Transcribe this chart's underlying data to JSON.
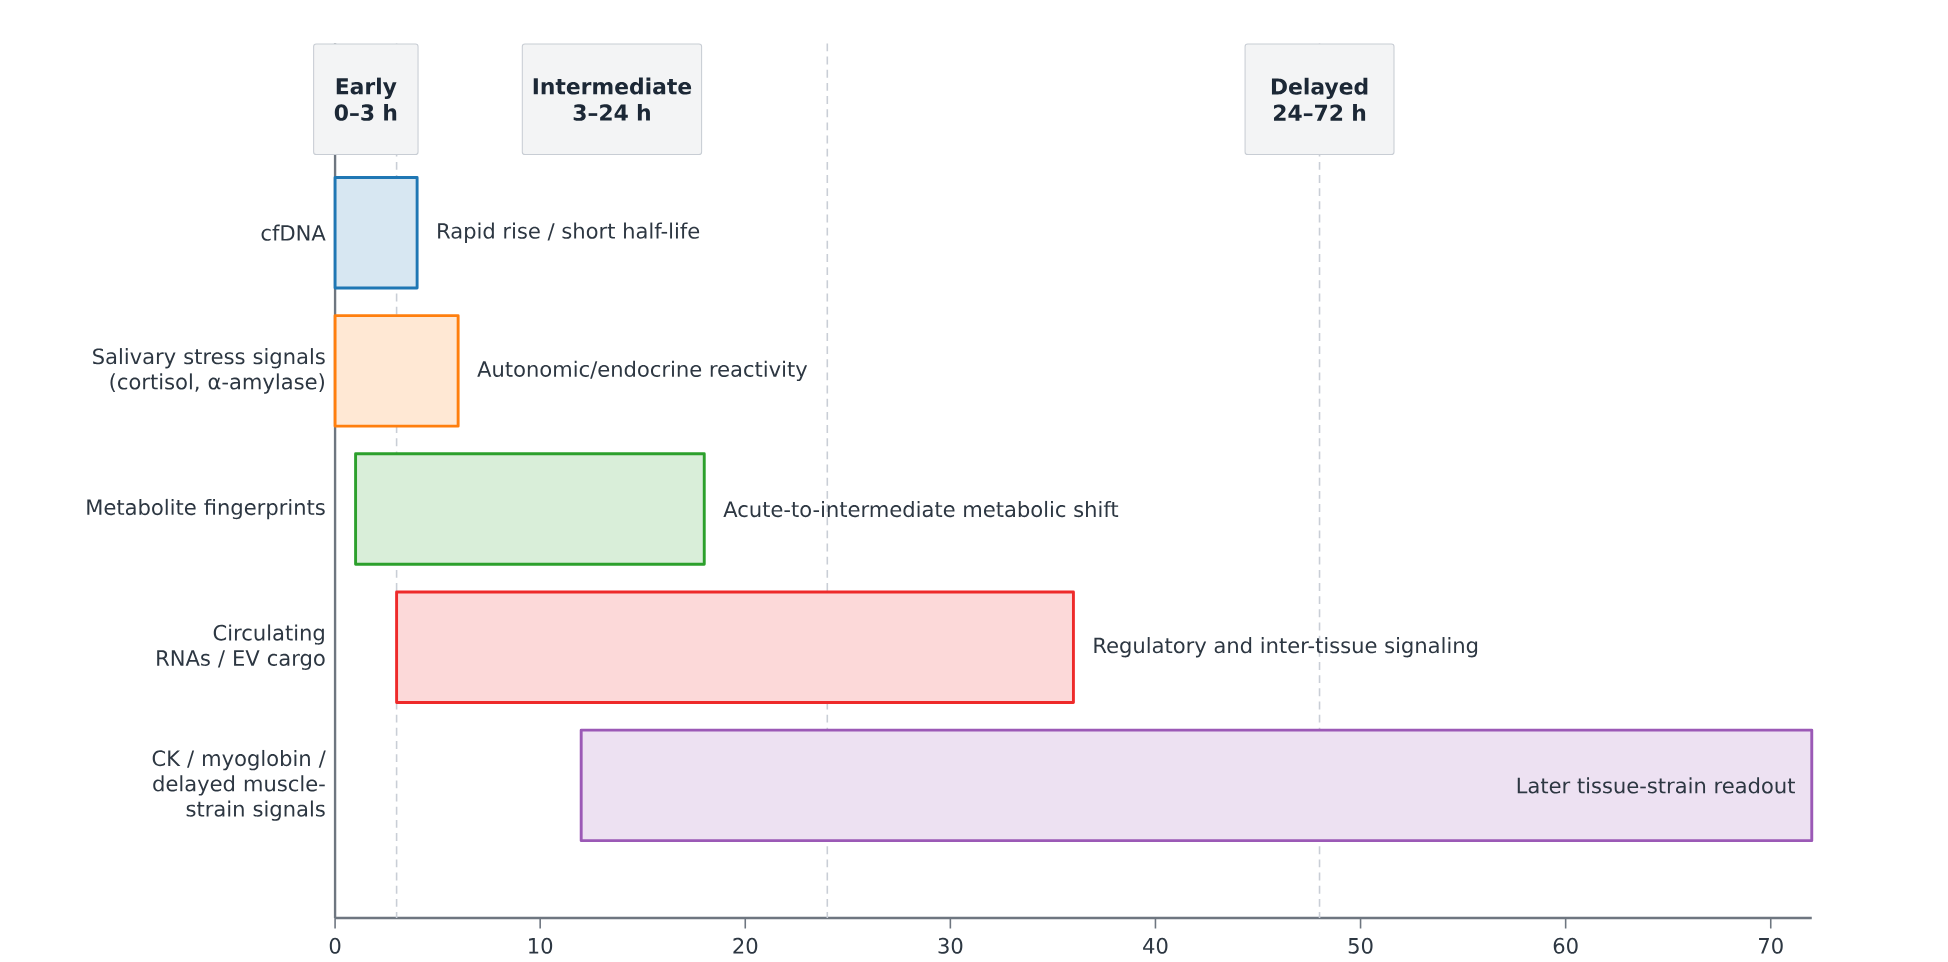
{
  "chart_data": {
    "type": "bar",
    "orientation": "horizontal",
    "categories": [
      "cfDNA",
      "Salivary stress signals (cortisol, α-amylase)",
      "Metabolite fingerprints",
      "Circulating RNAs / EV cargo",
      "CK / myoglobin / delayed muscle-strain signals"
    ],
    "base": [
      0,
      0,
      1,
      3,
      12
    ],
    "values": [
      4,
      6,
      17,
      33,
      60
    ],
    "colors": [
      "#1f77b4",
      "#ff7f0e",
      "#2ca02c",
      "#ee2a2a",
      "#9b59b6"
    ],
    "xlim": [
      0,
      72
    ],
    "xticks": [
      0,
      10,
      20,
      30,
      40,
      50,
      60,
      70
    ],
    "grid": false,
    "ref_lines": [
      {
        "axis": "x",
        "value": 3,
        "color": "#c9ced6",
        "line_style": "dashed"
      },
      {
        "axis": "x",
        "value": 24,
        "color": "#c9ced6",
        "line_style": "dashed"
      },
      {
        "axis": "x",
        "value": 48,
        "color": "#c9ced6",
        "line_style": "dashed",
        "label": "Delayed 24–72 h"
      }
    ],
    "annotations": [
      "Early 0–3 h",
      "Intermediate 3–24 h",
      {
        "text": "Rapid rise / short half-life",
        "x": 4,
        "y": "cfDNA"
      },
      {
        "text": "Autonomic/endocrine reactivity",
        "x": 6,
        "y": "Salivary stress signals (cortisol, α-amylase)"
      },
      {
        "text": "Acute-to-intermediate metabolic shift",
        "x": 18,
        "y": "Metabolite fingerprints"
      },
      {
        "text": "Regulatory and inter-tissue signaling",
        "x": 36,
        "y": "Circulating RNAs / EV cargo"
      },
      {
        "text": "Later tissue-strain readout",
        "x": 72,
        "y": "CK / myoglobin / delayed muscle-strain signals"
      }
    ]
  }
}
